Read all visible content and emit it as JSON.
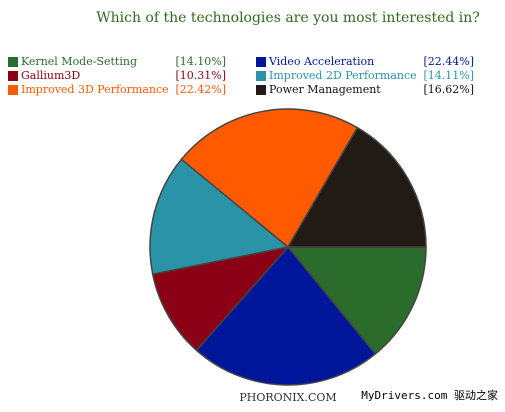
{
  "chart_data": {
    "type": "pie",
    "title": "Which of the technologies are you most interested in?",
    "categories": [
      "Kernel Mode-Setting",
      "Video Acceleration",
      "Gallium3D",
      "Improved 2D Performance",
      "Improved 3D Performance",
      "Power Management"
    ],
    "values": [
      14.1,
      22.44,
      10.31,
      14.11,
      22.42,
      16.62
    ],
    "value_labels": [
      "[14.10%]",
      "[22.44%]",
      "[10.31%]",
      "[14.11%]",
      "[22.42%]",
      "[16.62%]"
    ],
    "colors": [
      "#2b6b2b",
      "#00169a",
      "#8c0016",
      "#2a93a8",
      "#ff5a00",
      "#221a15"
    ],
    "label_colors": [
      "#2b6b2b",
      "#00169a",
      "#8c0016",
      "#2a93a8",
      "#ff5a00",
      "#111111"
    ],
    "source": "PHORONIX.COM",
    "watermark": "MyDrivers.com 驱动之家"
  }
}
